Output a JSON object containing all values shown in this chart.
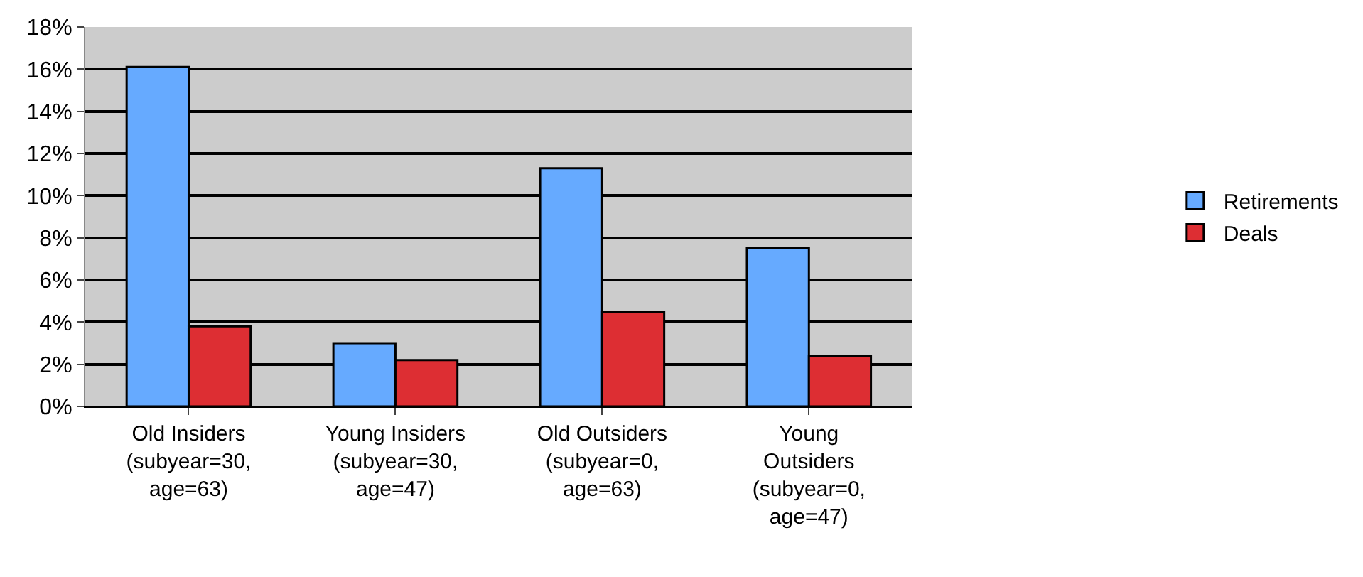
{
  "chart_data": {
    "type": "bar",
    "categories": [
      "Old Insiders\n(subyear=30,\nage=63)",
      "Young Insiders\n(subyear=30,\nage=47)",
      "Old Outsiders\n(subyear=0,\nage=63)",
      "Young\nOutsiders\n(subyear=0,\nage=47)"
    ],
    "series": [
      {
        "name": "Retirements",
        "color": "#66aaff",
        "values": [
          0.161,
          0.03,
          0.113,
          0.075
        ]
      },
      {
        "name": "Deals",
        "color": "#dd2e33",
        "values": [
          0.038,
          0.022,
          0.045,
          0.024
        ]
      }
    ],
    "ylim": [
      0,
      0.18
    ],
    "yticks": [
      {
        "value": 0,
        "label": "0%"
      },
      {
        "value": 0.02,
        "label": "2%"
      },
      {
        "value": 0.04,
        "label": "4%"
      },
      {
        "value": 0.06,
        "label": "6%"
      },
      {
        "value": 0.08,
        "label": "8%"
      },
      {
        "value": 0.1,
        "label": "10%"
      },
      {
        "value": 0.12,
        "label": "12%"
      },
      {
        "value": 0.14,
        "label": "14%"
      },
      {
        "value": 0.16,
        "label": "16%"
      },
      {
        "value": 0.18,
        "label": "18%"
      }
    ],
    "grid": "y",
    "legend": "right"
  }
}
